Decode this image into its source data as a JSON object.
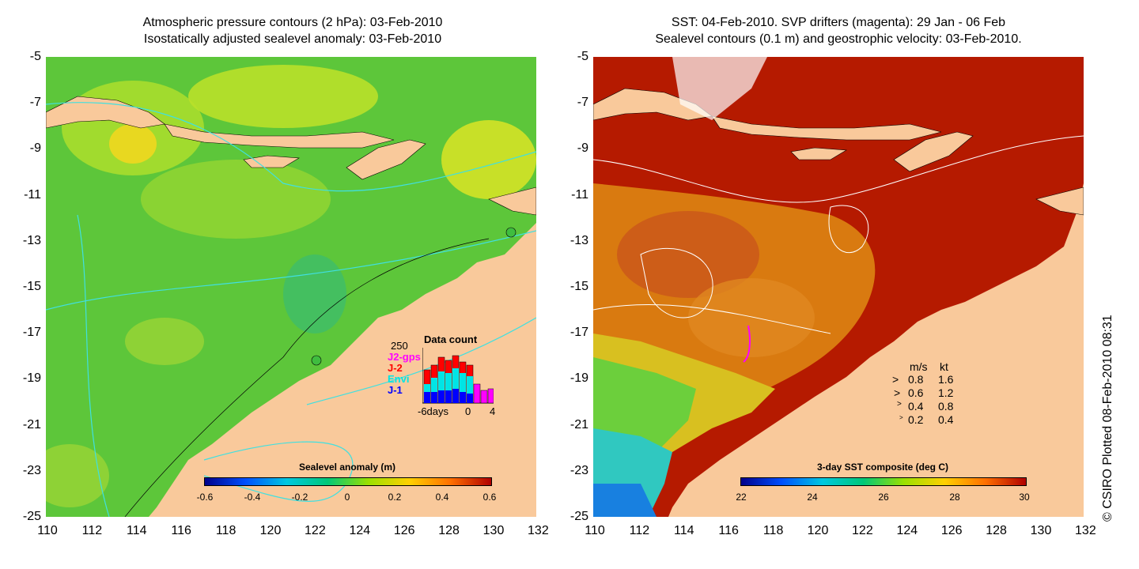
{
  "left_panel": {
    "title_line1": "Atmospheric pressure contours (2 hPa): 03-Feb-2010",
    "title_line2": "Isostatically adjusted sealevel anomaly: 03-Feb-2010",
    "colorbar_title": "Sealevel anomaly (m)",
    "colorbar_ticks": [
      "-0.6",
      "-0.4",
      "-0.2",
      "0",
      "0.2",
      "0.4",
      "0.6"
    ],
    "inset": {
      "title": "Data count",
      "max_label": "250",
      "series": [
        "J2-gps",
        "J-2",
        "Envi",
        "J-1"
      ],
      "series_colors": [
        "#ff00ff",
        "#ff0000",
        "#00e5e5",
        "#0000ff"
      ],
      "x_left": "-6days",
      "x_mid": "0",
      "x_right": "4"
    }
  },
  "right_panel": {
    "title_line1": "SST: 04-Feb-2010. SVP drifters (magenta): 29 Jan - 06 Feb",
    "title_line2": "Sealevel contours (0.1 m) and geostrophic velocity: 03-Feb-2010.",
    "colorbar_title": "3-day SST composite (deg C)",
    "colorbar_ticks": [
      "22",
      "24",
      "26",
      "28",
      "30"
    ],
    "velocity_legend": {
      "header_ms": "m/s",
      "header_kt": "kt",
      "rows": [
        {
          "ms": "0.8",
          "kt": "1.6"
        },
        {
          "ms": "0.6",
          "kt": "1.2"
        },
        {
          "ms": "0.4",
          "kt": "0.8"
        },
        {
          "ms": "0.2",
          "kt": "0.4"
        }
      ]
    }
  },
  "axes": {
    "lat_ticks": [
      "-5",
      "-7",
      "-9",
      "-11",
      "-13",
      "-15",
      "-17",
      "-19",
      "-21",
      "-23",
      "-25"
    ],
    "lon_ticks": [
      "110",
      "112",
      "114",
      "116",
      "118",
      "120",
      "122",
      "124",
      "126",
      "128",
      "130",
      "132"
    ]
  },
  "copyright": "© CSIRO Plotted 08-Feb-2010 08:31",
  "colors": {
    "land": "#f9c99b",
    "ocean_anomaly": "#6fcf3a",
    "sst_warm": "#b51a00",
    "sst_mid": "#d97a10",
    "contour_cyan": "#40e0e0"
  }
}
